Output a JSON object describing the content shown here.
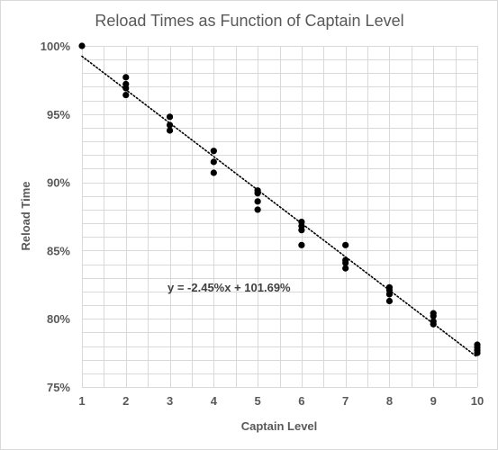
{
  "chart_data": {
    "type": "scatter",
    "title": "Reload Times as Function of Captain Level",
    "xlabel": "Captain Level",
    "ylabel": "Reload Time",
    "xlim": [
      1,
      10
    ],
    "ylim": [
      75,
      100
    ],
    "x_ticks": [
      "1",
      "2",
      "3",
      "4",
      "5",
      "6",
      "7",
      "8",
      "9",
      "10"
    ],
    "y_ticks": [
      "75%",
      "80%",
      "85%",
      "90%",
      "95%",
      "100%"
    ],
    "y_tick_values": [
      75,
      80,
      85,
      90,
      95,
      100
    ],
    "x_minor_step": 0.5,
    "y_minor_step": 1,
    "grid": "major and minor",
    "points": [
      {
        "x": 1,
        "y": 100.0
      },
      {
        "x": 2,
        "y": 97.7
      },
      {
        "x": 2,
        "y": 97.2
      },
      {
        "x": 2,
        "y": 96.9
      },
      {
        "x": 2,
        "y": 96.4
      },
      {
        "x": 3,
        "y": 94.8
      },
      {
        "x": 3,
        "y": 94.2
      },
      {
        "x": 3,
        "y": 93.8
      },
      {
        "x": 4,
        "y": 92.3
      },
      {
        "x": 4,
        "y": 91.5
      },
      {
        "x": 4,
        "y": 90.7
      },
      {
        "x": 5,
        "y": 89.4
      },
      {
        "x": 5,
        "y": 89.2
      },
      {
        "x": 5,
        "y": 88.6
      },
      {
        "x": 5,
        "y": 88.0
      },
      {
        "x": 6,
        "y": 87.1
      },
      {
        "x": 6,
        "y": 86.8
      },
      {
        "x": 6,
        "y": 86.5
      },
      {
        "x": 6,
        "y": 85.4
      },
      {
        "x": 7,
        "y": 85.4
      },
      {
        "x": 7,
        "y": 84.3
      },
      {
        "x": 7,
        "y": 84.1
      },
      {
        "x": 7,
        "y": 83.7
      },
      {
        "x": 8,
        "y": 82.3
      },
      {
        "x": 8,
        "y": 82.1
      },
      {
        "x": 8,
        "y": 81.8
      },
      {
        "x": 8,
        "y": 81.3
      },
      {
        "x": 9,
        "y": 80.4
      },
      {
        "x": 9,
        "y": 80.2
      },
      {
        "x": 9,
        "y": 79.8
      },
      {
        "x": 9,
        "y": 79.6
      },
      {
        "x": 10,
        "y": 78.1
      },
      {
        "x": 10,
        "y": 77.9
      },
      {
        "x": 10,
        "y": 77.7
      },
      {
        "x": 10,
        "y": 77.5
      }
    ],
    "trendline": {
      "type": "linear",
      "style": "dotted",
      "slope": -2.45,
      "intercept": 101.69,
      "equation": "y = -2.45%x + 101.69%"
    },
    "colors": {
      "points": "#000000",
      "trendline": "#000000",
      "grid": "#d9d9d9",
      "text": "#595959"
    }
  }
}
